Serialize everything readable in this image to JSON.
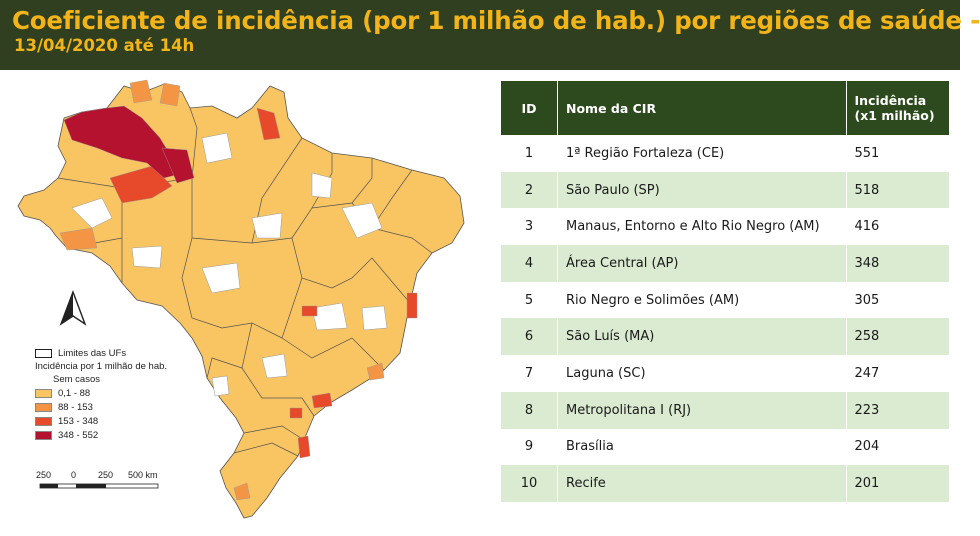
{
  "header": {
    "title": "Coeficiente de incidência (por 1 milhão de hab.) por regiões de saúde -",
    "subtitle": "13/04/2020 até 14h"
  },
  "legend": {
    "boundary_label": "Limites das UFs",
    "title": "Incidência por 1 milhão de hab.",
    "items": [
      {
        "label": "Sem casos",
        "color": "#ffffff"
      },
      {
        "label": "0,1 - 88",
        "color": "#f9c462"
      },
      {
        "label": "88 - 153",
        "color": "#f39545"
      },
      {
        "label": "153 - 348",
        "color": "#e64a2a"
      },
      {
        "label": "348 - 552",
        "color": "#b5122f"
      }
    ]
  },
  "scale": {
    "labels": [
      "250",
      "0",
      "250",
      "500 km"
    ]
  },
  "icons": {
    "north_arrow": "north-arrow-icon"
  },
  "table": {
    "headers": {
      "id": "ID",
      "name": "Nome da CIR",
      "incidence_line1": "Incidência",
      "incidence_line2": "(x1 milhão)"
    },
    "rows": [
      {
        "id": "1",
        "name": "1ª Região Fortaleza (CE)",
        "value": "551"
      },
      {
        "id": "2",
        "name": "São Paulo (SP)",
        "value": "518"
      },
      {
        "id": "3",
        "name": "Manaus, Entorno e Alto Rio Negro (AM)",
        "value": "416"
      },
      {
        "id": "4",
        "name": "Área Central (AP)",
        "value": "348"
      },
      {
        "id": "5",
        "name": "Rio Negro e Solimões (AM)",
        "value": "305"
      },
      {
        "id": "6",
        "name": "São Luís (MA)",
        "value": "258"
      },
      {
        "id": "7",
        "name": "Laguna (SC)",
        "value": "247"
      },
      {
        "id": "8",
        "name": "Metropolitana I (RJ)",
        "value": "223"
      },
      {
        "id": "9",
        "name": "Brasília",
        "value": "204"
      },
      {
        "id": "10",
        "name": "Recife",
        "value": "201"
      }
    ]
  },
  "colors": {
    "header_bg": "#2f3f1f",
    "title_color": "#f2b418",
    "table_header_bg": "#2d4a1e",
    "row_alt_bg": "#dbebd1"
  }
}
